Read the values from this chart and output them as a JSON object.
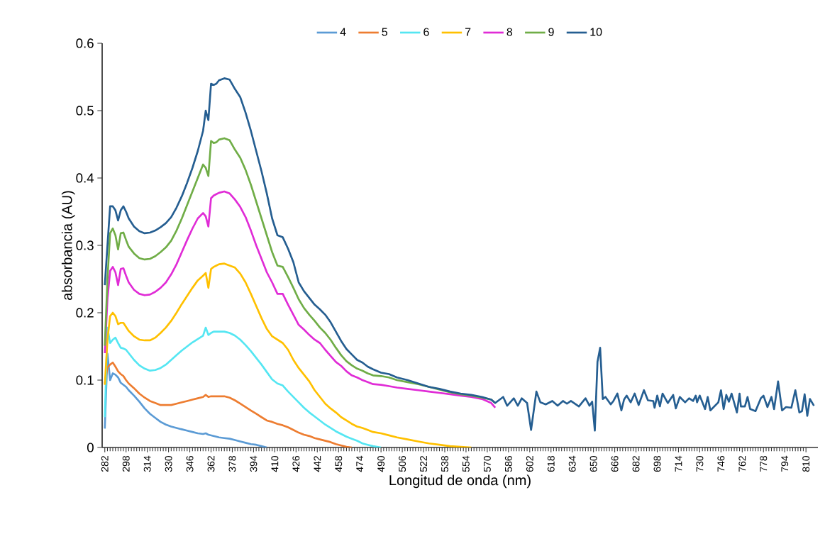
{
  "chart_data": {
    "type": "line",
    "xlabel": "Longitud de onda (nm)",
    "ylabel": "absorbancia (AU)",
    "xlim": [
      280,
      819
    ],
    "ylim": [
      0,
      0.6
    ],
    "xticks": [
      282,
      298,
      314,
      330,
      346,
      362,
      378,
      394,
      410,
      426,
      442,
      458,
      474,
      490,
      506,
      522,
      538,
      554,
      570,
      586,
      602,
      618,
      634,
      650,
      666,
      682,
      698,
      714,
      730,
      746,
      762,
      778,
      794,
      810
    ],
    "yticks": [
      0,
      0.1,
      0.2,
      0.3,
      0.4,
      0.5,
      0.6
    ],
    "legend": "top",
    "marker": "none",
    "line_style": "solid",
    "series": [
      {
        "name": "4",
        "color": "#5b9bd5",
        "x": [
          282,
          284,
          286,
          288,
          290,
          292,
          294,
          296,
          298,
          300,
          304,
          308,
          312,
          316,
          320,
          324,
          328,
          332,
          336,
          340,
          344,
          348,
          352,
          356,
          358,
          360,
          362,
          364,
          366,
          368,
          372,
          376,
          380,
          384,
          388,
          392,
          396,
          400,
          404
        ],
        "values": [
          0.028,
          0.139,
          0.1,
          0.11,
          0.108,
          0.104,
          0.096,
          0.093,
          0.09,
          0.085,
          0.077,
          0.068,
          0.058,
          0.05,
          0.044,
          0.038,
          0.034,
          0.031,
          0.029,
          0.027,
          0.025,
          0.023,
          0.021,
          0.02,
          0.021,
          0.019,
          0.018,
          0.017,
          0.016,
          0.015,
          0.014,
          0.013,
          0.011,
          0.009,
          0.007,
          0.005,
          0.004,
          0.002,
          0
        ]
      },
      {
        "name": "5",
        "color": "#ed7d31",
        "x": [
          282,
          284,
          286,
          288,
          290,
          292,
          294,
          296,
          298,
          300,
          304,
          308,
          312,
          316,
          320,
          324,
          328,
          332,
          336,
          340,
          344,
          348,
          352,
          356,
          358,
          360,
          362,
          364,
          366,
          368,
          372,
          376,
          380,
          384,
          388,
          392,
          396,
          400,
          404,
          408,
          412,
          416,
          420,
          424,
          428,
          432,
          436,
          440,
          444,
          448,
          452,
          456,
          460,
          464,
          468
        ],
        "values": [
          0.095,
          0.119,
          0.123,
          0.126,
          0.12,
          0.113,
          0.109,
          0.106,
          0.1,
          0.095,
          0.088,
          0.08,
          0.074,
          0.069,
          0.066,
          0.063,
          0.063,
          0.063,
          0.065,
          0.067,
          0.069,
          0.071,
          0.073,
          0.075,
          0.078,
          0.075,
          0.076,
          0.076,
          0.076,
          0.076,
          0.076,
          0.074,
          0.07,
          0.065,
          0.06,
          0.055,
          0.05,
          0.045,
          0.04,
          0.038,
          0.035,
          0.033,
          0.03,
          0.026,
          0.022,
          0.019,
          0.017,
          0.014,
          0.012,
          0.01,
          0.008,
          0.005,
          0.003,
          0.001,
          0
        ]
      },
      {
        "name": "6",
        "color": "#55e6f2",
        "x": [
          282,
          284,
          286,
          288,
          290,
          292,
          294,
          296,
          298,
          300,
          304,
          308,
          312,
          316,
          320,
          324,
          328,
          332,
          336,
          340,
          344,
          348,
          352,
          356,
          358,
          360,
          362,
          364,
          366,
          368,
          372,
          376,
          380,
          384,
          388,
          392,
          396,
          400,
          404,
          408,
          412,
          416,
          420,
          424,
          428,
          432,
          436,
          440,
          444,
          448,
          452,
          456,
          460,
          464,
          468,
          472,
          476,
          480,
          484,
          490
        ],
        "values": [
          0.045,
          0.178,
          0.155,
          0.16,
          0.163,
          0.155,
          0.148,
          0.147,
          0.145,
          0.14,
          0.13,
          0.122,
          0.117,
          0.114,
          0.115,
          0.118,
          0.123,
          0.13,
          0.137,
          0.144,
          0.15,
          0.156,
          0.161,
          0.166,
          0.178,
          0.167,
          0.17,
          0.172,
          0.172,
          0.172,
          0.172,
          0.17,
          0.166,
          0.16,
          0.152,
          0.143,
          0.133,
          0.123,
          0.112,
          0.101,
          0.095,
          0.092,
          0.083,
          0.075,
          0.067,
          0.059,
          0.052,
          0.046,
          0.04,
          0.034,
          0.029,
          0.024,
          0.02,
          0.016,
          0.013,
          0.01,
          0.006,
          0.004,
          0.002,
          0
        ]
      },
      {
        "name": "7",
        "color": "#ffc000",
        "x": [
          282,
          284,
          286,
          288,
          290,
          292,
          294,
          296,
          298,
          300,
          304,
          308,
          312,
          316,
          320,
          324,
          328,
          332,
          336,
          340,
          344,
          348,
          352,
          356,
          358,
          360,
          362,
          364,
          366,
          368,
          372,
          376,
          380,
          384,
          388,
          392,
          396,
          400,
          404,
          408,
          412,
          416,
          420,
          424,
          428,
          432,
          436,
          440,
          444,
          448,
          452,
          456,
          460,
          464,
          468,
          472,
          476,
          480,
          484,
          490,
          496,
          502,
          510,
          518,
          526,
          534,
          542,
          550,
          558
        ],
        "values": [
          0.093,
          0.16,
          0.195,
          0.2,
          0.195,
          0.183,
          0.185,
          0.185,
          0.179,
          0.173,
          0.165,
          0.16,
          0.159,
          0.159,
          0.163,
          0.17,
          0.178,
          0.188,
          0.2,
          0.213,
          0.225,
          0.237,
          0.248,
          0.255,
          0.259,
          0.237,
          0.265,
          0.268,
          0.27,
          0.272,
          0.273,
          0.27,
          0.267,
          0.258,
          0.245,
          0.228,
          0.21,
          0.192,
          0.176,
          0.165,
          0.16,
          0.155,
          0.145,
          0.13,
          0.118,
          0.108,
          0.098,
          0.085,
          0.075,
          0.065,
          0.058,
          0.052,
          0.045,
          0.04,
          0.035,
          0.031,
          0.029,
          0.026,
          0.023,
          0.021,
          0.018,
          0.015,
          0.012,
          0.009,
          0.006,
          0.004,
          0.002,
          0.001,
          0
        ]
      },
      {
        "name": "8",
        "color": "#e02cd6",
        "x": [
          282,
          284,
          286,
          288,
          290,
          292,
          294,
          296,
          298,
          300,
          304,
          308,
          312,
          316,
          320,
          324,
          328,
          332,
          336,
          340,
          344,
          348,
          352,
          356,
          358,
          360,
          362,
          364,
          366,
          368,
          372,
          376,
          380,
          384,
          388,
          392,
          396,
          400,
          404,
          408,
          412,
          416,
          420,
          424,
          428,
          432,
          436,
          440,
          444,
          448,
          452,
          456,
          460,
          464,
          468,
          472,
          476,
          480,
          484,
          490,
          496,
          502,
          510,
          518,
          526,
          534,
          542,
          550,
          558,
          566,
          573,
          576
        ],
        "values": [
          0.14,
          0.22,
          0.262,
          0.268,
          0.26,
          0.241,
          0.265,
          0.266,
          0.255,
          0.245,
          0.234,
          0.228,
          0.226,
          0.227,
          0.231,
          0.237,
          0.245,
          0.257,
          0.272,
          0.29,
          0.308,
          0.325,
          0.34,
          0.348,
          0.343,
          0.328,
          0.37,
          0.374,
          0.376,
          0.378,
          0.38,
          0.377,
          0.368,
          0.357,
          0.342,
          0.322,
          0.3,
          0.28,
          0.26,
          0.245,
          0.228,
          0.228,
          0.212,
          0.197,
          0.182,
          0.175,
          0.167,
          0.16,
          0.155,
          0.145,
          0.136,
          0.127,
          0.121,
          0.113,
          0.107,
          0.104,
          0.1,
          0.097,
          0.094,
          0.093,
          0.091,
          0.089,
          0.087,
          0.085,
          0.083,
          0.081,
          0.079,
          0.077,
          0.075,
          0.072,
          0.066,
          0.059
        ]
      },
      {
        "name": "9",
        "color": "#70ad47",
        "x": [
          282,
          284,
          286,
          288,
          290,
          292,
          294,
          296,
          298,
          300,
          304,
          308,
          312,
          316,
          320,
          324,
          328,
          332,
          336,
          340,
          344,
          348,
          352,
          356,
          358,
          360,
          362,
          364,
          366,
          368,
          372,
          376,
          380,
          384,
          388,
          392,
          396,
          400,
          404,
          408,
          412,
          416,
          420,
          424,
          428,
          432,
          436,
          440,
          444,
          448,
          452,
          456,
          460,
          464,
          468,
          472,
          476,
          480,
          484,
          490,
          496,
          502,
          510,
          518,
          526,
          534,
          542,
          550,
          558,
          566,
          573,
          576
        ],
        "values": [
          0.151,
          0.25,
          0.318,
          0.325,
          0.315,
          0.294,
          0.318,
          0.319,
          0.308,
          0.298,
          0.288,
          0.281,
          0.279,
          0.28,
          0.284,
          0.29,
          0.297,
          0.307,
          0.322,
          0.34,
          0.36,
          0.38,
          0.4,
          0.42,
          0.415,
          0.403,
          0.455,
          0.452,
          0.453,
          0.457,
          0.459,
          0.456,
          0.442,
          0.43,
          0.412,
          0.39,
          0.365,
          0.34,
          0.315,
          0.29,
          0.27,
          0.268,
          0.253,
          0.237,
          0.22,
          0.207,
          0.197,
          0.188,
          0.178,
          0.17,
          0.16,
          0.148,
          0.137,
          0.128,
          0.122,
          0.117,
          0.114,
          0.11,
          0.107,
          0.106,
          0.104,
          0.1,
          0.097,
          0.094,
          0.09,
          0.086,
          0.082,
          0.079,
          0.077,
          0.074,
          0.071,
          0.066
        ]
      },
      {
        "name": "10",
        "color": "#255e91",
        "x": [
          282,
          284,
          286,
          288,
          290,
          292,
          294,
          296,
          298,
          300,
          304,
          308,
          312,
          316,
          320,
          324,
          328,
          332,
          336,
          340,
          344,
          348,
          352,
          356,
          358,
          360,
          362,
          364,
          366,
          368,
          372,
          376,
          380,
          384,
          388,
          392,
          396,
          400,
          404,
          408,
          412,
          416,
          420,
          424,
          428,
          432,
          436,
          440,
          444,
          448,
          452,
          456,
          460,
          464,
          468,
          472,
          476,
          480,
          484,
          490,
          496,
          502,
          510,
          518,
          526,
          534,
          542,
          550,
          558,
          566,
          573,
          576,
          582,
          585,
          590,
          593,
          596,
          600,
          603,
          607,
          610,
          614,
          619,
          623,
          627,
          630,
          633,
          639,
          644,
          647,
          649,
          651,
          653,
          655,
          657,
          659,
          663,
          665,
          668,
          671,
          673,
          675,
          678,
          681,
          684,
          688,
          691,
          695,
          696,
          698,
          700,
          702,
          706,
          710,
          712,
          715,
          719,
          722,
          725,
          727,
          728,
          730,
          734,
          736,
          738,
          744,
          746,
          748,
          750,
          752,
          754,
          758,
          760,
          761,
          764,
          766,
          768,
          772,
          776,
          778,
          781,
          784,
          786,
          789,
          792,
          795,
          799,
          802,
          805,
          807,
          809,
          811,
          813,
          816
        ],
        "values": [
          0.241,
          0.3,
          0.358,
          0.358,
          0.352,
          0.337,
          0.352,
          0.358,
          0.35,
          0.34,
          0.328,
          0.321,
          0.318,
          0.319,
          0.322,
          0.327,
          0.333,
          0.342,
          0.356,
          0.373,
          0.393,
          0.415,
          0.44,
          0.47,
          0.5,
          0.486,
          0.54,
          0.538,
          0.54,
          0.545,
          0.548,
          0.546,
          0.532,
          0.52,
          0.497,
          0.47,
          0.44,
          0.41,
          0.377,
          0.34,
          0.315,
          0.312,
          0.295,
          0.275,
          0.245,
          0.232,
          0.222,
          0.212,
          0.205,
          0.197,
          0.186,
          0.172,
          0.158,
          0.146,
          0.138,
          0.13,
          0.126,
          0.12,
          0.116,
          0.111,
          0.109,
          0.104,
          0.1,
          0.095,
          0.09,
          0.087,
          0.083,
          0.08,
          0.078,
          0.075,
          0.071,
          0.066,
          0.075,
          0.062,
          0.073,
          0.062,
          0.073,
          0.066,
          0.026,
          0.083,
          0.067,
          0.064,
          0.069,
          0.062,
          0.069,
          0.065,
          0.069,
          0.061,
          0.073,
          0.062,
          0.068,
          0.025,
          0.127,
          0.148,
          0.072,
          0.075,
          0.064,
          0.069,
          0.08,
          0.055,
          0.071,
          0.077,
          0.067,
          0.08,
          0.063,
          0.085,
          0.07,
          0.069,
          0.059,
          0.077,
          0.061,
          0.08,
          0.066,
          0.078,
          0.058,
          0.075,
          0.067,
          0.073,
          0.069,
          0.077,
          0.067,
          0.077,
          0.057,
          0.075,
          0.055,
          0.067,
          0.085,
          0.057,
          0.078,
          0.068,
          0.08,
          0.052,
          0.08,
          0.061,
          0.061,
          0.075,
          0.057,
          0.054,
          0.073,
          0.077,
          0.06,
          0.075,
          0.057,
          0.098,
          0.055,
          0.06,
          0.059,
          0.085,
          0.052,
          0.054,
          0.079,
          0.047,
          0.072,
          0.062
        ]
      }
    ]
  }
}
